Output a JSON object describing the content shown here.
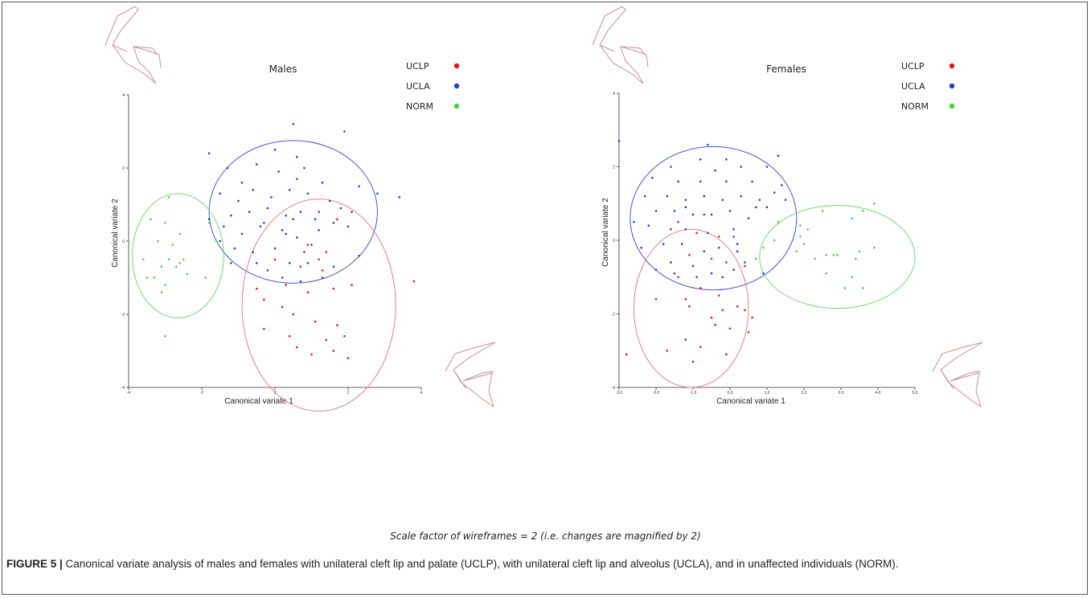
{
  "caption": {
    "label": "FIGURE 5 |",
    "text": " Canonical variate analysis of males and females with unilateral cleft lip and palate (UCLP), with unilateral cleft lip and alveolus (UCLA), and in unaffected individuals (NORM)."
  },
  "scale_note": "Scale factor of wireframes = 2   (i.e. changes are magnified by 2)",
  "colors": {
    "UCLP": "#e8141b",
    "UCLA": "#1f3fd1",
    "NORM": "#3ed83e",
    "ellipse_UCLP": "#e87f80",
    "ellipse_UCLA": "#4a55dd",
    "ellipse_NORM": "#6edc6e",
    "wireframe": "#c98d8d"
  },
  "chart_data": [
    {
      "type": "scatter",
      "title": "Males",
      "xlabel": "Canonical variate 1",
      "ylabel": "Canonical variate 2",
      "xlim": [
        -4,
        4
      ],
      "ylim": [
        -4,
        4
      ],
      "x_ticks": [
        "-4",
        "-2",
        "0",
        "2",
        "4"
      ],
      "y_ticks": [
        "4",
        "2",
        "0",
        "-2",
        "-4"
      ],
      "legend": [
        "UCLP",
        "UCLA",
        "NORM"
      ],
      "legend_position": "top-right",
      "series": [
        {
          "name": "UCLP",
          "points": [
            [
              0.6,
              1.7
            ],
            [
              1.2,
              0.8
            ],
            [
              1.7,
              0.6
            ],
            [
              2.1,
              0.8
            ],
            [
              0.9,
              -0.1
            ],
            [
              1.4,
              -0.3
            ],
            [
              0.7,
              -0.7
            ],
            [
              1.3,
              -0.8
            ],
            [
              0.3,
              -1.2
            ],
            [
              0.9,
              -1.4
            ],
            [
              1.6,
              -1.3
            ],
            [
              2.1,
              -1.2
            ],
            [
              -0.3,
              -1.6
            ],
            [
              0.2,
              -1.8
            ],
            [
              0.5,
              -2.0
            ],
            [
              1.1,
              -2.2
            ],
            [
              1.7,
              -2.3
            ],
            [
              -0.3,
              -2.4
            ],
            [
              0.4,
              -2.6
            ],
            [
              1.4,
              -2.7
            ],
            [
              0.6,
              -2.9
            ],
            [
              1.0,
              -3.1
            ],
            [
              1.6,
              -3.0
            ],
            [
              1.9,
              -2.6
            ],
            [
              2.0,
              -3.2
            ],
            [
              3.8,
              -1.1
            ],
            [
              -0.5,
              -1.3
            ],
            [
              1.2,
              -0.5
            ],
            [
              0.0,
              -0.5
            ],
            [
              2.3,
              -0.4
            ]
          ]
        },
        {
          "name": "UCLA",
          "points": [
            [
              0.5,
              3.2
            ],
            [
              1.9,
              3.0
            ],
            [
              -1.8,
              2.4
            ],
            [
              -1.3,
              2.0
            ],
            [
              -0.5,
              2.1
            ],
            [
              0.1,
              1.9
            ],
            [
              0.8,
              2.0
            ],
            [
              1.3,
              1.6
            ],
            [
              2.3,
              1.5
            ],
            [
              2.8,
              1.3
            ],
            [
              3.4,
              1.2
            ],
            [
              -1.5,
              1.3
            ],
            [
              -1.0,
              1.1
            ],
            [
              -0.6,
              1.4
            ],
            [
              -0.1,
              1.2
            ],
            [
              0.4,
              1.4
            ],
            [
              0.9,
              1.3
            ],
            [
              1.5,
              1.1
            ],
            [
              -1.2,
              0.7
            ],
            [
              -0.7,
              0.8
            ],
            [
              -0.2,
              0.9
            ],
            [
              0.3,
              0.7
            ],
            [
              0.7,
              0.8
            ],
            [
              1.1,
              0.6
            ],
            [
              1.6,
              0.5
            ],
            [
              2.0,
              0.4
            ],
            [
              -1.8,
              0.6
            ],
            [
              -1.4,
              0.4
            ],
            [
              -0.9,
              0.2
            ],
            [
              -0.4,
              0.4
            ],
            [
              0.2,
              0.3
            ],
            [
              0.6,
              0.1
            ],
            [
              1.0,
              -0.1
            ],
            [
              -1.1,
              -0.2
            ],
            [
              -0.6,
              -0.3
            ],
            [
              0.0,
              -0.2
            ],
            [
              0.4,
              -0.6
            ],
            [
              0.9,
              -0.6
            ],
            [
              -0.2,
              -0.8
            ],
            [
              0.2,
              -1.0
            ],
            [
              0.7,
              -1.1
            ],
            [
              1.3,
              -1.0
            ],
            [
              -1.5,
              0.0
            ],
            [
              -1.2,
              -0.6
            ],
            [
              0.0,
              2.5
            ],
            [
              0.6,
              2.3
            ],
            [
              -0.9,
              1.6
            ],
            [
              1.2,
              0.3
            ],
            [
              0.5,
              0.6
            ],
            [
              -0.3,
              0.5
            ],
            [
              1.6,
              -0.7
            ],
            [
              0.8,
              -0.3
            ],
            [
              -0.5,
              -0.6
            ],
            [
              0.3,
              0.2
            ],
            [
              1.8,
              0.9
            ]
          ]
        },
        {
          "name": "NORM",
          "points": [
            [
              -3.4,
              0.6
            ],
            [
              -2.9,
              1.2
            ],
            [
              -3.0,
              0.5
            ],
            [
              -2.6,
              0.2
            ],
            [
              -3.2,
              0.0
            ],
            [
              -2.8,
              -0.1
            ],
            [
              -3.6,
              -0.5
            ],
            [
              -2.9,
              -0.5
            ],
            [
              -2.6,
              -0.6
            ],
            [
              -2.5,
              -0.5
            ],
            [
              -3.1,
              -0.7
            ],
            [
              -3.3,
              -1.0
            ],
            [
              -2.4,
              -0.9
            ],
            [
              -3.0,
              -1.2
            ],
            [
              -3.1,
              -1.4
            ],
            [
              -1.9,
              -1.0
            ],
            [
              -1.6,
              0.0
            ],
            [
              -1.8,
              0.5
            ],
            [
              -3.0,
              -2.6
            ],
            [
              -2.7,
              -0.7
            ],
            [
              -3.5,
              -1.0
            ]
          ]
        }
      ],
      "ellipses": [
        {
          "name": "UCLA",
          "cx": 0.5,
          "cy": 0.8,
          "rx": 2.3,
          "ry": 1.95
        },
        {
          "name": "UCLP",
          "cx": 1.2,
          "cy": -1.75,
          "rx": 2.1,
          "ry": 2.9
        },
        {
          "name": "NORM",
          "cx": -2.65,
          "cy": -0.4,
          "rx": 1.25,
          "ry": 1.7
        }
      ]
    },
    {
      "type": "scatter",
      "title": "Females",
      "xlabel": "Canonical variate 1",
      "ylabel": "Canonical variate 2",
      "xlim": [
        -3,
        5
      ],
      "ylim": [
        -4,
        4
      ],
      "x_ticks": [
        "-3,0",
        "-2,0",
        "-1,0",
        "0,0",
        "1,0",
        "2,0",
        "3,0",
        "4,0",
        "5,0"
      ],
      "y_ticks": [
        "4",
        "2",
        "0",
        "-2",
        "-4"
      ],
      "legend": [
        "UCLP",
        "UCLA",
        "NORM"
      ],
      "legend_position": "top-right",
      "series": [
        {
          "name": "UCLP",
          "points": [
            [
              -1.4,
              0.5
            ],
            [
              -0.7,
              0.7
            ],
            [
              -0.9,
              0.2
            ],
            [
              -0.3,
              0.1
            ],
            [
              0.1,
              0.1
            ],
            [
              -1.1,
              -0.4
            ],
            [
              -0.5,
              -0.5
            ],
            [
              -0.1,
              -0.6
            ],
            [
              0.4,
              -0.7
            ],
            [
              -1.4,
              -1.0
            ],
            [
              -0.8,
              -1.3
            ],
            [
              -1.2,
              -1.6
            ],
            [
              -0.3,
              -1.5
            ],
            [
              0.2,
              -1.8
            ],
            [
              -0.5,
              -2.1
            ],
            [
              0.4,
              -1.9
            ],
            [
              -0.4,
              -2.3
            ],
            [
              0.0,
              -2.4
            ],
            [
              0.5,
              -2.5
            ],
            [
              -1.7,
              -3.0
            ],
            [
              -1.0,
              -3.3
            ],
            [
              -0.8,
              -2.9
            ],
            [
              -0.1,
              -3.1
            ],
            [
              -2.8,
              -3.1
            ],
            [
              -1.1,
              -1.8
            ],
            [
              -2.0,
              -1.6
            ],
            [
              0.6,
              -2.1
            ],
            [
              -0.2,
              -1.9
            ]
          ]
        },
        {
          "name": "UCLA",
          "points": [
            [
              -3.0,
              2.7
            ],
            [
              -0.6,
              2.6
            ],
            [
              -0.8,
              2.2
            ],
            [
              -0.1,
              2.2
            ],
            [
              -1.6,
              2.0
            ],
            [
              -0.4,
              1.9
            ],
            [
              0.3,
              2.0
            ],
            [
              1.0,
              2.0
            ],
            [
              1.3,
              2.3
            ],
            [
              -2.1,
              1.7
            ],
            [
              -1.4,
              1.6
            ],
            [
              -0.8,
              1.6
            ],
            [
              -0.1,
              1.6
            ],
            [
              0.6,
              1.6
            ],
            [
              1.4,
              1.5
            ],
            [
              -2.3,
              1.2
            ],
            [
              -1.7,
              1.2
            ],
            [
              -1.2,
              1.1
            ],
            [
              -0.7,
              1.2
            ],
            [
              -0.2,
              1.1
            ],
            [
              0.3,
              1.2
            ],
            [
              0.8,
              1.1
            ],
            [
              1.2,
              1.3
            ],
            [
              -2.0,
              0.8
            ],
            [
              -1.5,
              0.8
            ],
            [
              -1.0,
              0.7
            ],
            [
              -0.5,
              0.7
            ],
            [
              0.0,
              0.8
            ],
            [
              0.5,
              0.6
            ],
            [
              1.0,
              0.9
            ],
            [
              -2.2,
              0.4
            ],
            [
              -1.6,
              0.3
            ],
            [
              -1.2,
              0.3
            ],
            [
              -0.6,
              0.2
            ],
            [
              0.1,
              0.3
            ],
            [
              -2.4,
              -0.2
            ],
            [
              -1.8,
              -0.1
            ],
            [
              -1.3,
              -0.1
            ],
            [
              -0.7,
              -0.3
            ],
            [
              -0.3,
              -0.2
            ],
            [
              0.2,
              -0.3
            ],
            [
              -1.6,
              -0.6
            ],
            [
              -1.0,
              -0.7
            ],
            [
              -0.5,
              -0.9
            ],
            [
              0.1,
              -0.8
            ],
            [
              -2.0,
              -0.8
            ],
            [
              -1.5,
              -0.9
            ],
            [
              -0.9,
              -1.0
            ],
            [
              -0.2,
              -1.0
            ],
            [
              -1.2,
              -2.7
            ],
            [
              0.4,
              -0.6
            ],
            [
              -1.2,
              0.9
            ],
            [
              1.5,
              1.1
            ],
            [
              0.7,
              0.9
            ],
            [
              -2.6,
              0.5
            ],
            [
              0.2,
              -0.1
            ],
            [
              0.9,
              -0.9
            ]
          ]
        },
        {
          "name": "NORM",
          "points": [
            [
              2.5,
              0.8
            ],
            [
              3.9,
              1.0
            ],
            [
              3.3,
              0.6
            ],
            [
              3.6,
              0.8
            ],
            [
              1.9,
              0.4
            ],
            [
              2.1,
              0.3
            ],
            [
              1.9,
              0.1
            ],
            [
              2.0,
              -0.1
            ],
            [
              1.8,
              -0.3
            ],
            [
              2.3,
              -0.5
            ],
            [
              2.6,
              -0.4
            ],
            [
              2.8,
              -0.4
            ],
            [
              2.9,
              -0.4
            ],
            [
              3.4,
              -0.5
            ],
            [
              3.5,
              -0.3
            ],
            [
              3.9,
              -0.2
            ],
            [
              2.6,
              -0.9
            ],
            [
              3.1,
              -1.3
            ],
            [
              3.3,
              -1.0
            ],
            [
              3.6,
              -1.3
            ],
            [
              1.3,
              0.5
            ],
            [
              1.2,
              0.0
            ],
            [
              0.9,
              -0.2
            ],
            [
              0.7,
              -0.5
            ]
          ]
        }
      ],
      "ellipses": [
        {
          "name": "UCLA",
          "cx": -0.45,
          "cy": 0.6,
          "rx": 2.25,
          "ry": 1.95
        },
        {
          "name": "UCLP",
          "cx": -1.05,
          "cy": -1.85,
          "rx": 1.55,
          "ry": 2.15
        },
        {
          "name": "NORM",
          "cx": 2.9,
          "cy": -0.45,
          "rx": 2.1,
          "ry": 1.4
        }
      ]
    }
  ]
}
